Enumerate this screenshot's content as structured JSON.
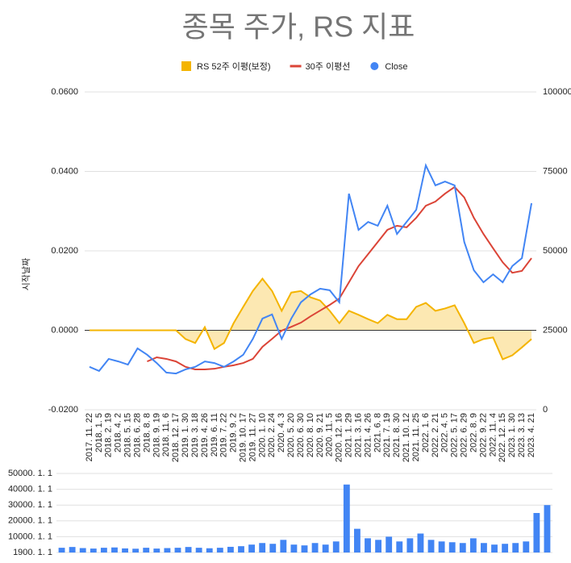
{
  "chart_data": [
    {
      "type": "line",
      "title": "종목 주가, RS 지표",
      "y_label": "시작날짜",
      "categories": [
        "2017. 11. 22",
        "2018. 1. 5",
        "2018. 2. 19",
        "2018. 4. 2",
        "2018. 5. 15",
        "2018. 6. 28",
        "2018. 8. 8",
        "2018. 9. 19",
        "2018. 11. 6",
        "2018. 12. 17",
        "2019. 1. 30",
        "2019. 3. 18",
        "2019. 4. 26",
        "2019. 6. 11",
        "2019. 7. 22",
        "2019. 9. 2",
        "2019. 10. 17",
        "2019. 11. 27",
        "2020. 1. 10",
        "2020. 2. 24",
        "2020. 4. 3",
        "2020. 5. 20",
        "2020. 6. 30",
        "2020. 8. 10",
        "2020. 9. 21",
        "2020. 11. 5",
        "2020. 12. 16",
        "2021. 1. 29",
        "2021. 3. 16",
        "2021. 4. 26",
        "2021. 6. 8",
        "2021. 7. 19",
        "2021. 8. 30",
        "2021. 10. 12",
        "2021. 11. 25",
        "2022. 1. 6",
        "2022. 2. 21",
        "2022. 4. 5",
        "2022. 5. 17",
        "2022. 6. 29",
        "2022. 8. 9",
        "2022. 9. 22",
        "2022. 11. 4",
        "2022. 12. 15",
        "2023. 1. 30",
        "2023. 3. 13",
        "2023. 4. 21"
      ],
      "series": [
        {
          "name": "RS 52주 이평(보정)",
          "color": "#f4b400",
          "fill": true,
          "values": [
            0,
            0,
            0,
            0,
            0,
            0,
            0,
            0,
            0,
            0,
            -0.0022,
            -0.0032,
            0.0008,
            -0.0047,
            -0.0032,
            0.0018,
            0.0059,
            0.0099,
            0.013,
            0.0099,
            0.0049,
            0.0095,
            0.0099,
            0.0083,
            0.0075,
            0.0049,
            0.0018,
            0.0049,
            0.0039,
            0.0028,
            0.0018,
            0.0039,
            0.0028,
            0.0028,
            0.0059,
            0.0069,
            0.0049,
            0.0055,
            0.0063,
            0.0018,
            -0.0032,
            -0.0022,
            -0.0018,
            -0.0073,
            -0.0063,
            -0.0043,
            -0.0022
          ]
        },
        {
          "name": "30주 이평선",
          "color": "#db4437",
          "axis": "y2",
          "values": [
            null,
            null,
            null,
            null,
            null,
            null,
            15200,
            16500,
            16000,
            15200,
            13500,
            12700,
            12700,
            12900,
            13500,
            14000,
            14700,
            16000,
            19800,
            22300,
            24900,
            26100,
            27400,
            29400,
            31200,
            33000,
            35000,
            40100,
            45200,
            49000,
            52800,
            56600,
            57900,
            57400,
            60400,
            64200,
            65500,
            68000,
            70100,
            66800,
            60400,
            55300,
            50800,
            46400,
            43100,
            43700,
            47700
          ]
        },
        {
          "name": "Close",
          "color": "#4285f4",
          "axis": "y2",
          "values": [
            13500,
            12200,
            16000,
            15200,
            14200,
            19300,
            17300,
            14700,
            11700,
            11400,
            12700,
            13500,
            15200,
            14700,
            13500,
            15200,
            17300,
            22300,
            28700,
            30000,
            22300,
            28700,
            33800,
            36300,
            38100,
            37600,
            33800,
            68000,
            56600,
            59100,
            57900,
            64200,
            55300,
            59100,
            62900,
            76900,
            70600,
            71800,
            70600,
            52800,
            43900,
            40100,
            42600,
            40100,
            45200,
            47700,
            65000
          ]
        }
      ],
      "ylim": [
        -0.02,
        0.06
      ],
      "yticks": [
        {
          "value": -0.02,
          "label": "-0.0200"
        },
        {
          "value": 0,
          "label": "0.0000"
        },
        {
          "value": 0.02,
          "label": "0.0200"
        },
        {
          "value": 0.04,
          "label": "0.0400"
        },
        {
          "value": 0.06,
          "label": "0.0600"
        }
      ],
      "y2lim": [
        0,
        100000
      ],
      "y2ticks": [
        0,
        25000,
        50000,
        75000,
        100000
      ],
      "grid": true,
      "legend": "top"
    },
    {
      "type": "bar",
      "color": "#4285f4",
      "values": [
        3000,
        3500,
        2800,
        2500,
        3000,
        3200,
        2600,
        2400,
        3000,
        2500,
        2800,
        3000,
        3500,
        3000,
        2700,
        3000,
        3600,
        4000,
        5000,
        6000,
        5500,
        8000,
        5000,
        4500,
        6000,
        5000,
        7000,
        43000,
        15000,
        9000,
        8000,
        10000,
        7000,
        9000,
        12000,
        8000,
        7000,
        6500,
        6000,
        9000,
        6000,
        5000,
        5500,
        6000,
        7000,
        25000,
        30000
      ],
      "ylim": [
        0,
        50000
      ],
      "yticks": [
        {
          "value": 0,
          "label": "1900. 1. 1"
        },
        {
          "value": 10000,
          "label": "10000. 1. 1"
        },
        {
          "value": 20000,
          "label": "20000. 1. 1"
        },
        {
          "value": 30000,
          "label": "30000. 1. 1"
        },
        {
          "value": 40000,
          "label": "40000. 1. 1"
        },
        {
          "value": 50000,
          "label": "50000. 1. 1"
        }
      ],
      "grid": true
    }
  ]
}
